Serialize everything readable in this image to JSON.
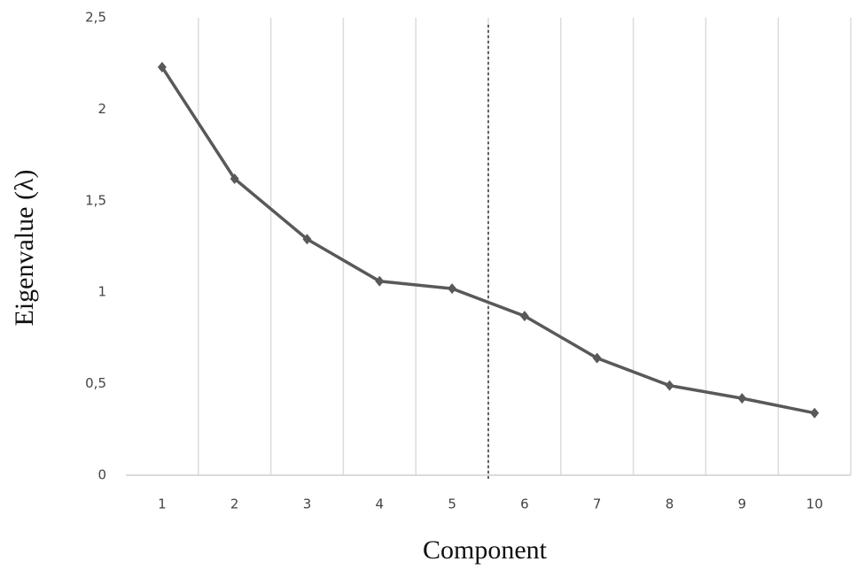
{
  "chart_data": {
    "type": "line",
    "x_label": "Component",
    "y_label": "Eigenvalue (λ)",
    "categories": [
      "1",
      "2",
      "3",
      "4",
      "5",
      "6",
      "7",
      "8",
      "9",
      "10"
    ],
    "series": [
      {
        "color": "#595959",
        "values": [
          2.23,
          1.62,
          1.29,
          1.06,
          1.02,
          0.87,
          0.64,
          0.49,
          0.42,
          0.34
        ]
      }
    ],
    "ylim": [
      0,
      2.5
    ],
    "yticks": [
      0,
      {
        "value": 0.5,
        "label": "0,5"
      },
      1,
      {
        "value": 1.5,
        "label": "1,5"
      },
      2,
      {
        "value": 2.5,
        "label": "2,5"
      }
    ],
    "grid": true
  }
}
